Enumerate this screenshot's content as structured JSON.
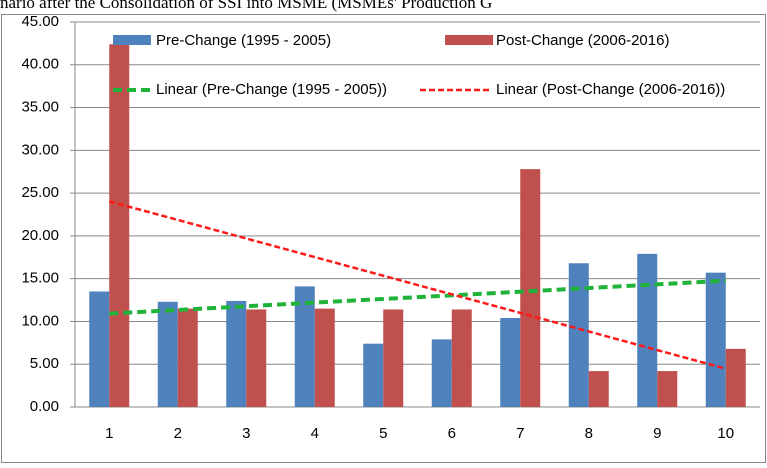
{
  "chart_data": {
    "type": "bar",
    "title": "nario after the Consolidation of SSI into MSME (MSMEs' Production G",
    "categories": [
      "1",
      "2",
      "3",
      "4",
      "5",
      "6",
      "7",
      "8",
      "9",
      "10"
    ],
    "series": [
      {
        "name": "Pre-Change (1995 - 2005)",
        "color": "#4f81bd",
        "values": [
          13.5,
          12.3,
          12.4,
          14.1,
          7.4,
          7.9,
          10.4,
          16.8,
          17.9,
          15.7
        ]
      },
      {
        "name": "Post-Change (2006-2016)",
        "color": "#c0504d",
        "values": [
          42.4,
          11.5,
          11.4,
          11.5,
          11.4,
          11.4,
          27.8,
          4.2,
          4.2,
          6.8
        ]
      }
    ],
    "trendlines": [
      {
        "name": "Linear (Pre-Change (1995 - 2005))",
        "color": "#1fb33a"
      },
      {
        "name": "Linear (Post-Change (2006-2016))",
        "color": "#ff1a1a"
      }
    ],
    "ylim": [
      0,
      45
    ],
    "yticks": [
      {
        "value": 0,
        "label": "0.00"
      },
      {
        "value": 5,
        "label": "5.00"
      },
      {
        "value": 10,
        "label": "10.00"
      },
      {
        "value": 15,
        "label": "15.00"
      },
      {
        "value": 20,
        "label": "20.00"
      },
      {
        "value": 25,
        "label": "25.00"
      },
      {
        "value": 30,
        "label": "30.00"
      },
      {
        "value": 35,
        "label": "35.00"
      },
      {
        "value": 40,
        "label": "40.00"
      },
      {
        "value": 45,
        "label": "45.00"
      }
    ],
    "grid": true
  }
}
